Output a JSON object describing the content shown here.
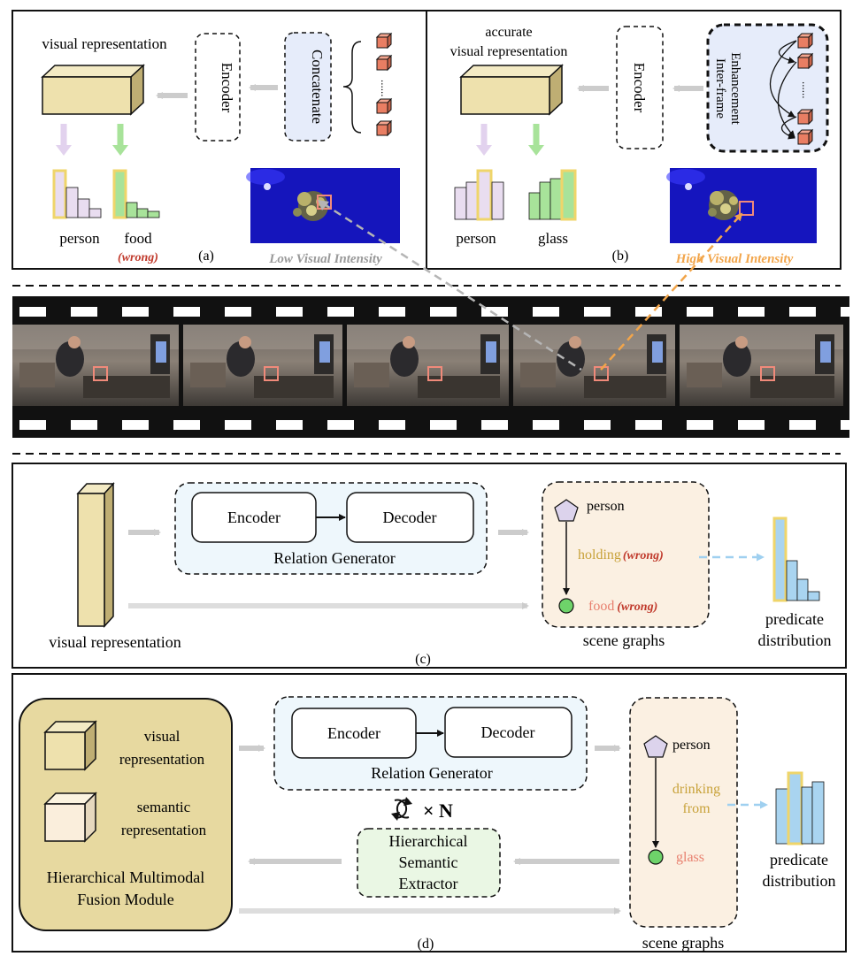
{
  "panel_a": {
    "title": "visual representation",
    "encoder": "Encoder",
    "concatenate": "Concatenate",
    "dots": "......",
    "label_person": "person",
    "label_food": "food",
    "label_wrong": "(wrong)",
    "tag": "(a)",
    "intensity": "Low Visual Intensity"
  },
  "panel_b": {
    "title_line1": "accurate",
    "title_line2": "visual representation",
    "encoder": "Encoder",
    "enh_line1": "Inter-frame",
    "enh_line2": "Enhancement",
    "dots": "......",
    "label_person": "person",
    "label_glass": "glass",
    "tag": "(b)",
    "intensity": "High Visual Intensity"
  },
  "panel_c": {
    "encoder": "Encoder",
    "decoder": "Decoder",
    "relation_generator": "Relation Generator",
    "node_person": "person",
    "edge_label": "holding",
    "edge_wrong": "(wrong)",
    "node_food": "food",
    "node_wrong": "(wrong)",
    "scene_graphs": "scene graphs",
    "visual_representation": "visual representation",
    "predicate_line1": "predicate",
    "predicate_line2": "distribution",
    "tag": "(c)"
  },
  "panel_d": {
    "visual_line1": "visual",
    "visual_line2": "representation",
    "semantic_line1": "semantic",
    "semantic_line2": "representation",
    "hmfm_line1": "Hierarchical Multimodal",
    "hmfm_line2": "Fusion Module",
    "encoder": "Encoder",
    "decoder": "Decoder",
    "relation_generator": "Relation Generator",
    "loop_text": "× N",
    "hse_line1": "Hierarchical",
    "hse_line2": "Semantic",
    "hse_line3": "Extractor",
    "node_person": "person",
    "edge_line1": "drinking",
    "edge_line2": "from",
    "node_glass": "glass",
    "scene_graphs": "scene graphs",
    "predicate_line1": "predicate",
    "predicate_line2": "distribution",
    "tag": "(d)"
  },
  "colors": {
    "cube_face": "#EEE1AD",
    "cube_side": "#BFAE73",
    "bar_purple": "#E9DDF0",
    "bar_green": "#A8E39A",
    "bar_blue": "#A9D4F0",
    "highlight_yellow": "#EFD56A",
    "wrong_red": "#C0392B",
    "low_gray": "#999999",
    "high_orange": "#F2A54A",
    "gold_text": "#C8A23A",
    "salmon_text": "#E8806F",
    "scene_bg": "#FBF0E2",
    "relgen_bg": "#EEF7FC",
    "hse_bg": "#EAF7E4",
    "hmfm_bg": "#E7D9A0",
    "concat_bg": "#E6ECFA",
    "enh_bg": "#E6ECFA",
    "arrow_gray": "#CCCCCC"
  },
  "icons": [
    "cycle-icon",
    "pentagon-node-icon",
    "circle-node-icon",
    "feature-cube-icon"
  ]
}
